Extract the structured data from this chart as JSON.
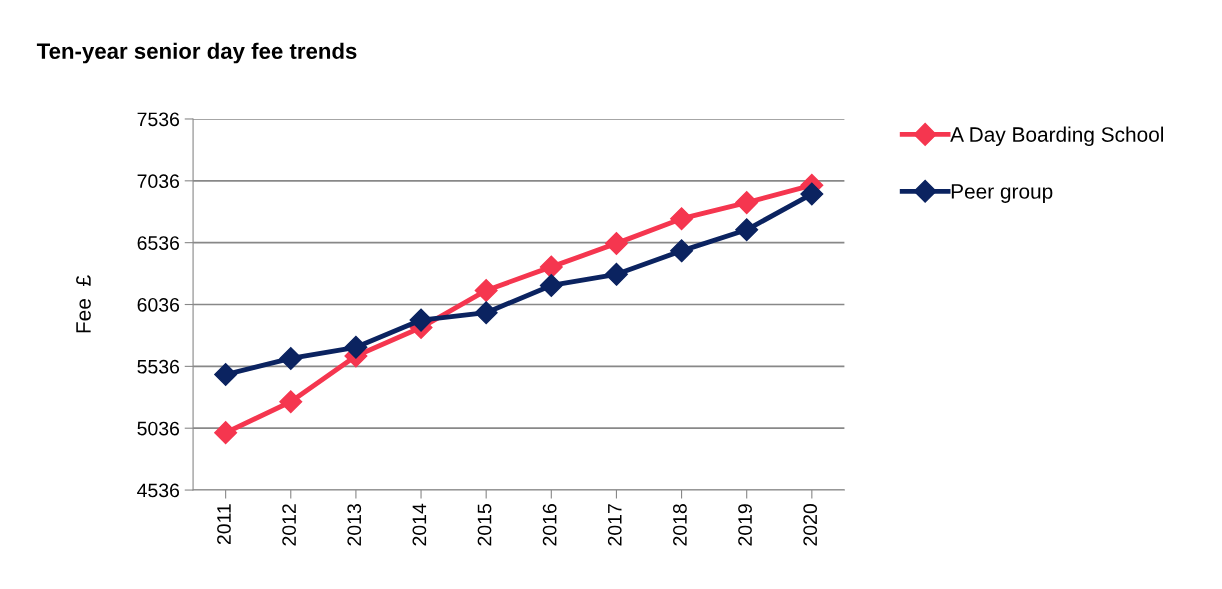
{
  "chart_data": {
    "type": "line",
    "title": "Ten-year senior day fee trends",
    "ylabel": "Fee  £",
    "categories": [
      "2011",
      "2012",
      "2013",
      "2014",
      "2015",
      "2016",
      "2017",
      "2018",
      "2019",
      "2020"
    ],
    "series": [
      {
        "name": "A Day Boarding School",
        "color": "#f5364f",
        "values": [
          5000,
          5250,
          5620,
          5850,
          6150,
          6340,
          6530,
          6730,
          6860,
          7000
        ]
      },
      {
        "name": "Peer group",
        "color": "#0b2360",
        "values": [
          5470,
          5600,
          5690,
          5910,
          5970,
          6190,
          6280,
          6470,
          6640,
          6930
        ]
      }
    ],
    "ylim": [
      4536,
      7536
    ],
    "yticks": [
      4536,
      5036,
      5536,
      6036,
      6536,
      7036,
      7536
    ],
    "grid": "y",
    "legend": "top right",
    "marker": "diamond",
    "line_style": "solid"
  }
}
